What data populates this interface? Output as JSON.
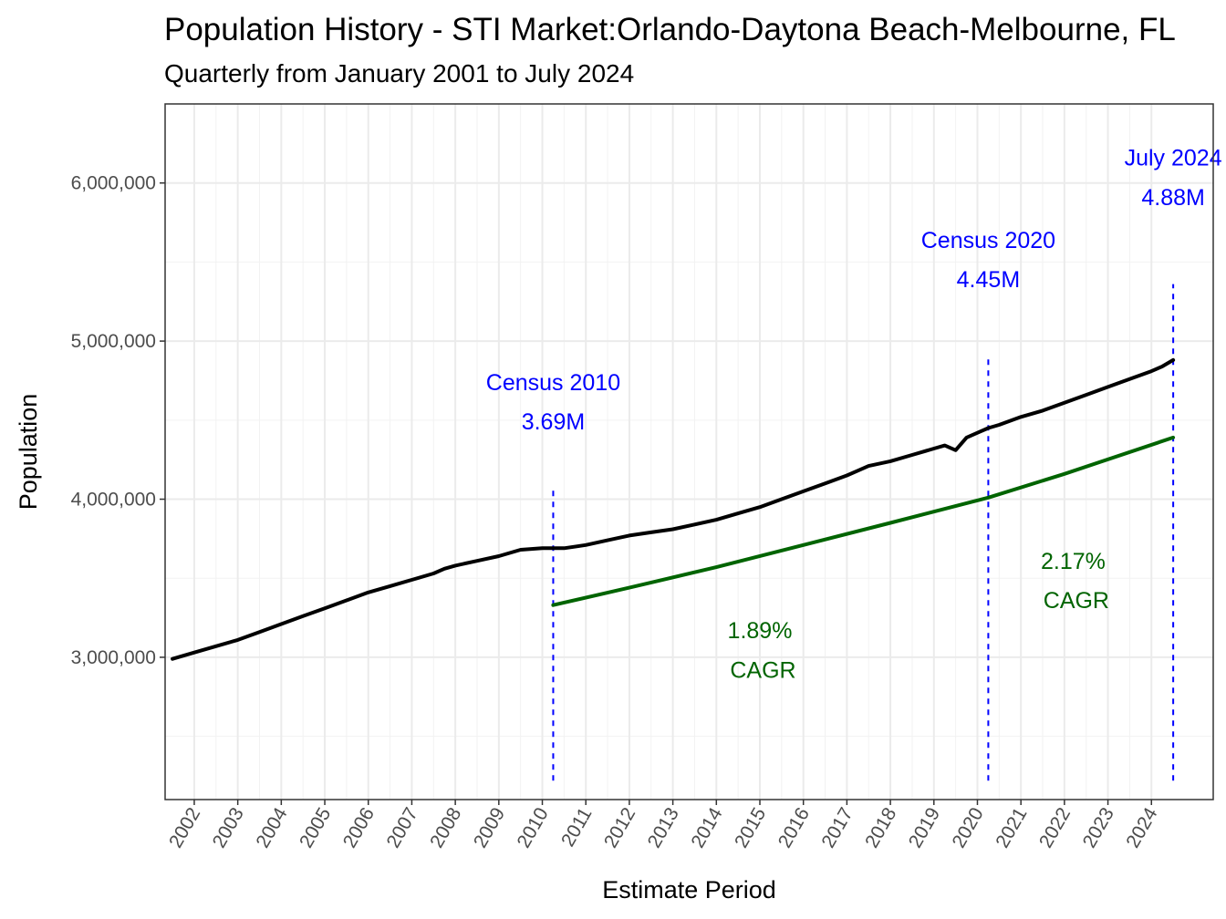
{
  "chart_data": {
    "type": "line",
    "title": "Population History - STI Market:Orlando-Daytona Beach-Melbourne, FL",
    "subtitle": "Quarterly from January 2001 to July 2024",
    "xlabel": "Estimate Period",
    "ylabel": "Population",
    "xlim": [
      2001.33,
      2025.42
    ],
    "ylim": [
      2100000,
      6500000
    ],
    "y_ticks": [
      3000000,
      4000000,
      5000000,
      6000000
    ],
    "y_tick_labels": [
      "3,000,000",
      "4,000,000",
      "5,000,000",
      "6,000,000"
    ],
    "x_ticks": [
      2002,
      2003,
      2004,
      2005,
      2006,
      2007,
      2008,
      2009,
      2010,
      2011,
      2012,
      2013,
      2014,
      2015,
      2016,
      2017,
      2018,
      2019,
      2020,
      2021,
      2022,
      2023,
      2024
    ],
    "x_tick_labels": [
      "2002",
      "2003",
      "2004",
      "2005",
      "2006",
      "2007",
      "2008",
      "2009",
      "2010",
      "2011",
      "2012",
      "2013",
      "2014",
      "2015",
      "2016",
      "2017",
      "2018",
      "2019",
      "2020",
      "2021",
      "2022",
      "2023",
      "2024"
    ],
    "grid": true,
    "legend": "none",
    "series": [
      {
        "name": "Population",
        "color": "#000000",
        "x": [
          2001.5,
          2002.0,
          2002.5,
          2003.0,
          2003.5,
          2004.0,
          2004.5,
          2005.0,
          2005.5,
          2006.0,
          2006.5,
          2007.0,
          2007.5,
          2007.75,
          2008.0,
          2008.5,
          2009.0,
          2009.5,
          2010.0,
          2010.25,
          2010.5,
          2011.0,
          2011.5,
          2012.0,
          2012.5,
          2013.0,
          2013.5,
          2014.0,
          2014.5,
          2015.0,
          2015.5,
          2016.0,
          2016.5,
          2017.0,
          2017.25,
          2017.5,
          2018.0,
          2018.5,
          2019.0,
          2019.25,
          2019.5,
          2019.75,
          2020.0,
          2020.25,
          2020.5,
          2021.0,
          2021.5,
          2022.0,
          2022.5,
          2023.0,
          2023.5,
          2024.0,
          2024.25,
          2024.5
        ],
        "values": [
          2990000,
          3030000,
          3070000,
          3110000,
          3160000,
          3210000,
          3260000,
          3310000,
          3360000,
          3410000,
          3450000,
          3490000,
          3530000,
          3560000,
          3580000,
          3610000,
          3640000,
          3680000,
          3690000,
          3690000,
          3690000,
          3710000,
          3740000,
          3770000,
          3790000,
          3810000,
          3840000,
          3870000,
          3910000,
          3950000,
          4000000,
          4050000,
          4100000,
          4150000,
          4180000,
          4210000,
          4240000,
          4280000,
          4320000,
          4340000,
          4310000,
          4390000,
          4420000,
          4450000,
          4470000,
          4520000,
          4560000,
          4610000,
          4660000,
          4710000,
          4760000,
          4810000,
          4840000,
          4880000
        ]
      },
      {
        "name": "CAGR trend",
        "color": "#006400",
        "x": [
          2010.25,
          2012.0,
          2014.0,
          2016.0,
          2018.0,
          2020.25,
          2022.0,
          2024.5
        ],
        "values": [
          3330000,
          3440000,
          3570000,
          3710000,
          3850000,
          4010000,
          4160000,
          4390000
        ]
      }
    ],
    "vlines": [
      {
        "x": 2010.25,
        "y_from": 2220000,
        "y_to": 4080000,
        "color": "#0000ff"
      },
      {
        "x": 2020.25,
        "y_from": 2220000,
        "y_to": 4900000,
        "color": "#0000ff"
      },
      {
        "x": 2024.5,
        "y_from": 2220000,
        "y_to": 5360000,
        "color": "#0000ff"
      }
    ],
    "annotations": [
      {
        "lines": [
          "Census 2010",
          "3.69M"
        ],
        "x": 2010.25,
        "y": 4690000,
        "line_gap": 250000,
        "color": "#0000ff"
      },
      {
        "lines": [
          "Census 2020",
          "4.45M"
        ],
        "x": 2020.25,
        "y": 5590000,
        "line_gap": 250000,
        "color": "#0000ff"
      },
      {
        "lines": [
          "July 2024",
          "4.88M"
        ],
        "x": 2024.5,
        "y": 6110000,
        "line_gap": 250000,
        "color": "#0000ff"
      },
      {
        "lines": [
          "1.89%",
          " CAGR"
        ],
        "x": 2015.0,
        "y": 3120000,
        "line_gap": 250000,
        "color": "#006400"
      },
      {
        "lines": [
          "2.17%",
          " CAGR"
        ],
        "x": 2022.2,
        "y": 3560000,
        "line_gap": 250000,
        "color": "#006400"
      }
    ]
  }
}
